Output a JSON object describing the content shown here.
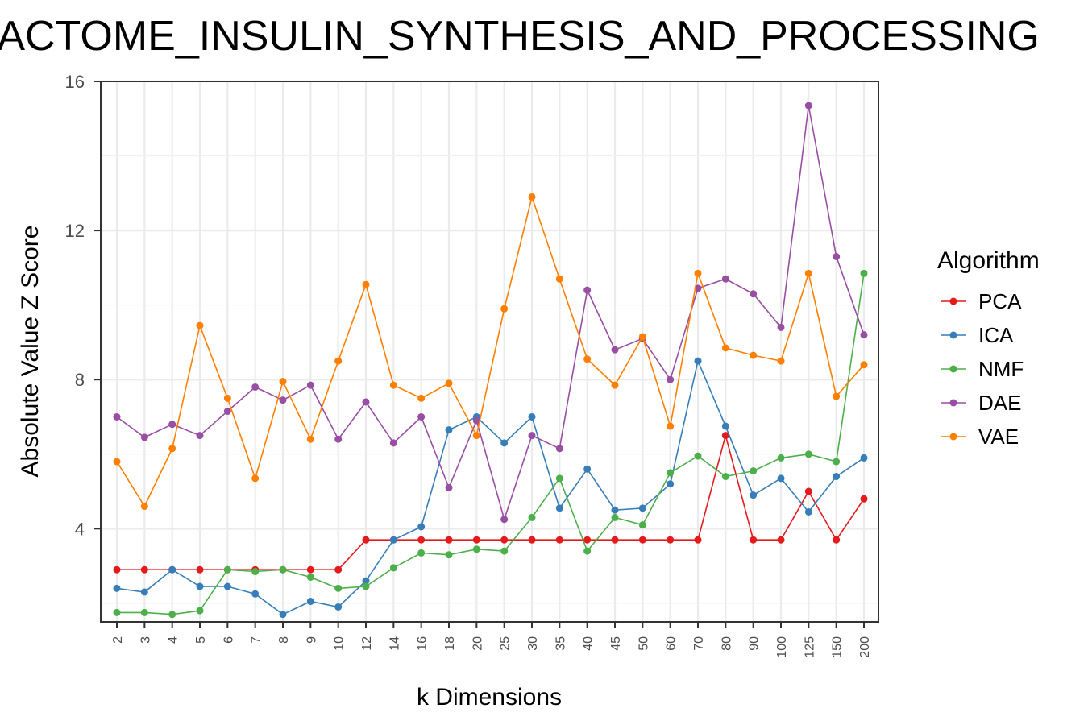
{
  "chart_data": {
    "type": "line",
    "title": "REACTOME_INSULIN_SYNTHESIS_AND_PROCESSING",
    "xlabel": "k Dimensions",
    "ylabel": "Absolute Value Z Score",
    "categories": [
      "2",
      "3",
      "4",
      "5",
      "6",
      "7",
      "8",
      "9",
      "10",
      "12",
      "14",
      "16",
      "18",
      "20",
      "25",
      "30",
      "35",
      "40",
      "45",
      "50",
      "60",
      "70",
      "80",
      "90",
      "100",
      "125",
      "150",
      "200"
    ],
    "ylim": [
      1.5,
      16
    ],
    "yticks": [
      4,
      8,
      12,
      16
    ],
    "yticks_labels": [
      "4",
      "8",
      "12",
      "16"
    ],
    "grid": true,
    "legend_title": "Algorithm",
    "legend_position": "right",
    "series": [
      {
        "name": "PCA",
        "color": "#e41a1c",
        "values": [
          2.9,
          2.9,
          2.9,
          2.9,
          2.9,
          2.9,
          2.9,
          2.9,
          2.9,
          3.7,
          3.7,
          3.7,
          3.7,
          3.7,
          3.7,
          3.7,
          3.7,
          3.7,
          3.7,
          3.7,
          3.7,
          3.7,
          6.5,
          3.7,
          3.7,
          5.0,
          3.7,
          4.8
        ]
      },
      {
        "name": "ICA",
        "color": "#377eb8",
        "values": [
          2.4,
          2.3,
          2.9,
          2.45,
          2.45,
          2.25,
          1.7,
          2.05,
          1.9,
          2.6,
          3.7,
          4.05,
          6.65,
          7.0,
          6.3,
          7.0,
          4.55,
          5.6,
          4.5,
          4.55,
          5.2,
          8.5,
          6.75,
          4.9,
          5.35,
          4.45,
          5.4,
          5.9
        ]
      },
      {
        "name": "NMF",
        "color": "#4daf4a",
        "values": [
          1.75,
          1.75,
          1.7,
          1.8,
          2.9,
          2.85,
          2.9,
          2.7,
          2.4,
          2.45,
          2.95,
          3.35,
          3.3,
          3.45,
          3.4,
          4.3,
          5.35,
          3.4,
          4.3,
          4.1,
          5.5,
          5.95,
          5.4,
          5.55,
          5.9,
          6.0,
          5.8,
          10.85
        ]
      },
      {
        "name": "DAE",
        "color": "#984ea3",
        "values": [
          7.0,
          6.45,
          6.8,
          6.5,
          7.15,
          7.8,
          7.45,
          7.85,
          6.4,
          7.4,
          6.3,
          7.0,
          5.1,
          6.9,
          4.25,
          6.5,
          6.15,
          10.4,
          8.8,
          9.1,
          8.0,
          10.45,
          10.7,
          10.3,
          9.4,
          15.35,
          11.3,
          9.2
        ]
      },
      {
        "name": "VAE",
        "color": "#ff7f00",
        "values": [
          5.8,
          4.6,
          6.15,
          9.45,
          7.5,
          5.35,
          7.95,
          6.4,
          8.5,
          10.55,
          7.85,
          7.5,
          7.9,
          6.5,
          9.9,
          12.9,
          10.7,
          8.55,
          7.85,
          9.15,
          6.75,
          10.85,
          8.85,
          8.65,
          8.5,
          10.85,
          7.55,
          8.4
        ]
      }
    ]
  }
}
